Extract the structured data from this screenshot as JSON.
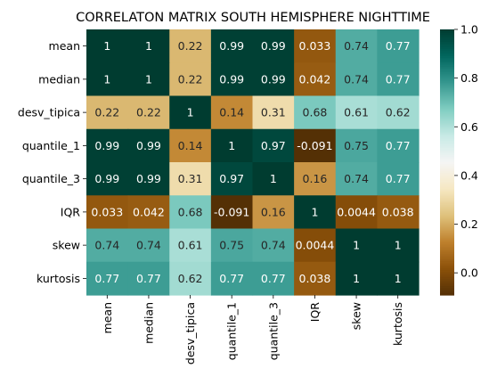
{
  "chart_data": {
    "type": "heatmap",
    "title": "CORRELATON MATRIX SOUTH HEMISPHERE NIGHTTIME",
    "rows": [
      "mean",
      "median",
      "desv_tipica",
      "quantile_1",
      "quantile_3",
      "IQR",
      "skew",
      "kurtosis"
    ],
    "columns": [
      "mean",
      "median",
      "desv_tipica",
      "quantile_1",
      "quantile_3",
      "IQR",
      "skew",
      "kurtosis"
    ],
    "values": [
      [
        1,
        1,
        0.22,
        0.99,
        0.99,
        0.033,
        0.74,
        0.77
      ],
      [
        1,
        1,
        0.22,
        0.99,
        0.99,
        0.042,
        0.74,
        0.77
      ],
      [
        0.22,
        0.22,
        1,
        0.14,
        0.31,
        0.68,
        0.61,
        0.62
      ],
      [
        0.99,
        0.99,
        0.14,
        1,
        0.97,
        -0.091,
        0.75,
        0.77
      ],
      [
        0.99,
        0.99,
        0.31,
        0.97,
        1,
        0.16,
        0.74,
        0.77
      ],
      [
        0.033,
        0.042,
        0.68,
        -0.091,
        0.16,
        1,
        0.0044,
        0.038
      ],
      [
        0.74,
        0.74,
        0.61,
        0.75,
        0.74,
        0.0044,
        1,
        1
      ],
      [
        0.77,
        0.77,
        0.62,
        0.77,
        0.77,
        0.038,
        1,
        1
      ]
    ],
    "colormap": "BrBG",
    "vmin": -0.091,
    "vmax": 1.0,
    "colorbar_ticks": [
      "0.0",
      "0.2",
      "0.4",
      "0.6",
      "0.8",
      "1.0"
    ],
    "annotations": true
  }
}
